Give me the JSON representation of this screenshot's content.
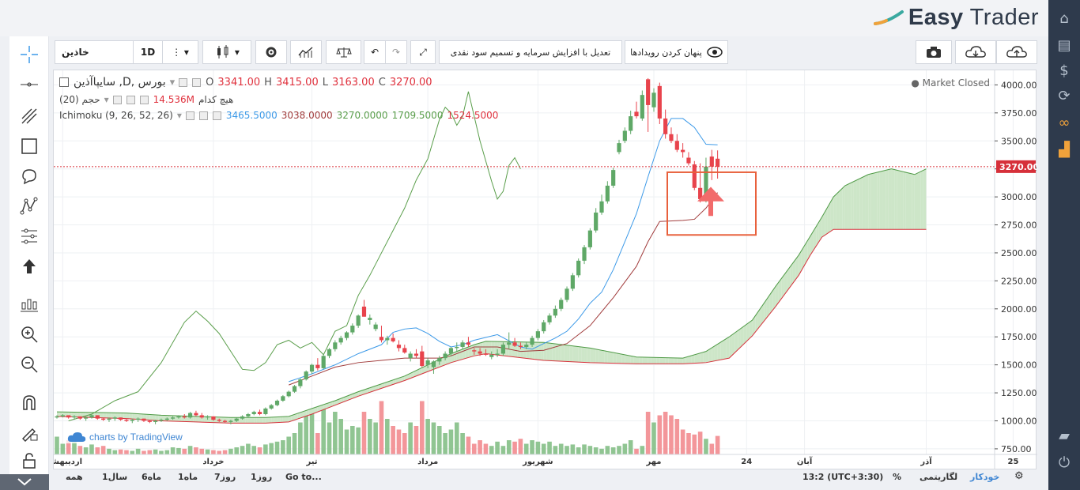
{
  "brand": {
    "name_part1": "Easy",
    "name_part2": "Trader"
  },
  "toolbar": {
    "symbol": "خاذین",
    "interval": "1D",
    "adjust_label": "تعدیل با افزایش سرمایه و تسمیم سود نقدی",
    "hide_events_label": "پنهان کردن رویدادها"
  },
  "legend": {
    "title": "سایپاآذین ,D, بورس",
    "open_label": "O",
    "open": "3341.00",
    "high_label": "H",
    "high": "3415.00",
    "low_label": "L",
    "low": "3163.00",
    "close_label": "C",
    "close": "3270.00",
    "volume_label": "(حجم (20",
    "volume_none": "هیچ کدام",
    "volume_value": "14.536M",
    "ichimoku_label": "Ichimoku (9, 26, 52, 26)",
    "ich_tenkan": "3465.5000",
    "ich_kijun": "3038.0000",
    "ich_chikou": "3270.0000",
    "ich_spanA": "1709.5000",
    "ich_spanB": "1524.5000"
  },
  "market_status": "Market Closed",
  "watermark": "charts by TradingView",
  "bottom": {
    "ranges": [
      "همه",
      "1سال",
      "6ماه",
      "1ماه",
      "7روز",
      "1روز"
    ],
    "goto": "Go to...",
    "time": "13:2 (UTC+3:30)",
    "percent": "%",
    "log": "لگاریتمی",
    "auto": "خودکار"
  },
  "colors": {
    "up": "#5fa867",
    "down": "#e8434c",
    "tenkan": "#3d9ae8",
    "kijun": "#a13c3c",
    "chikou": "#5a9e4b",
    "cloud_bull": "#cde6c8",
    "cloud_bear": "#f5c6c6",
    "price_line": "#d6303a",
    "highlight": "#e8603c"
  },
  "chart_data": {
    "type": "candlestick",
    "ylim": [
      700,
      4130
    ],
    "y_ticks": [
      750,
      1000,
      1250,
      1500,
      1750,
      2000,
      2250,
      2500,
      2750,
      3000,
      3250,
      3500,
      3750,
      4000
    ],
    "y_tick_labels": [
      "750.00",
      "1000.00",
      "1250.00",
      "1500.00",
      "1750.00",
      "2000.00",
      "2250.00",
      "2500.00",
      "2750.00",
      "3000.00",
      "3250.00",
      "3500.00",
      "3750.00",
      "4000.00"
    ],
    "last_price": 3270,
    "last_price_label": "3270.00",
    "x_labels": [
      {
        "i": 1,
        "text": "اردیبهشت"
      },
      {
        "i": 27,
        "text": "خرداد"
      },
      {
        "i": 44,
        "text": "تیر"
      },
      {
        "i": 64,
        "text": "مرداد"
      },
      {
        "i": 83,
        "text": "شهریور"
      },
      {
        "i": 103,
        "text": "مهر"
      },
      {
        "i": 119,
        "text": "24"
      },
      {
        "i": 129,
        "text": "آبان"
      },
      {
        "i": 150,
        "text": "آذر"
      },
      {
        "i": 165,
        "text": "25"
      }
    ],
    "volume_max": 1.0,
    "candles": [
      [
        1030,
        1050,
        1020,
        1040,
        0.25
      ],
      [
        1040,
        1060,
        1030,
        1050,
        0.15
      ],
      [
        1050,
        1040,
        1020,
        1030,
        0.2
      ],
      [
        1030,
        1050,
        1010,
        1040,
        0.18
      ],
      [
        1040,
        1040,
        1010,
        1020,
        0.12
      ],
      [
        1020,
        1040,
        1000,
        1030,
        0.1
      ],
      [
        1030,
        1060,
        1020,
        1050,
        0.14
      ],
      [
        1050,
        1050,
        1010,
        1020,
        0.1
      ],
      [
        1020,
        1030,
        1000,
        1010,
        0.12
      ],
      [
        1010,
        1030,
        990,
        1020,
        0.08
      ],
      [
        1020,
        1040,
        1000,
        1030,
        0.06
      ],
      [
        1030,
        1030,
        1000,
        1010,
        0.07
      ],
      [
        1010,
        1020,
        990,
        1000,
        0.06
      ],
      [
        1000,
        1020,
        980,
        1010,
        0.05
      ],
      [
        1010,
        1030,
        990,
        1020,
        0.08
      ],
      [
        1020,
        1020,
        990,
        1000,
        0.05
      ],
      [
        1000,
        1010,
        980,
        990,
        0.06
      ],
      [
        990,
        1010,
        970,
        1000,
        0.07
      ],
      [
        1000,
        1020,
        990,
        1010,
        0.05
      ],
      [
        1010,
        1030,
        1000,
        1020,
        0.06
      ],
      [
        1020,
        1040,
        1010,
        1030,
        0.1
      ],
      [
        1030,
        1050,
        1020,
        1040,
        0.09
      ],
      [
        1040,
        1060,
        1020,
        1030,
        0.08
      ],
      [
        1030,
        1080,
        1020,
        1070,
        0.12
      ],
      [
        1070,
        1090,
        1040,
        1050,
        0.1
      ],
      [
        1050,
        1070,
        1020,
        1030,
        0.08
      ],
      [
        1030,
        1050,
        1010,
        1040,
        0.07
      ],
      [
        1040,
        1040,
        1000,
        1010,
        0.06
      ],
      [
        1010,
        1020,
        990,
        1000,
        0.05
      ],
      [
        1000,
        1010,
        980,
        990,
        0.06
      ],
      [
        990,
        1010,
        970,
        1000,
        0.08
      ],
      [
        1000,
        1030,
        990,
        1020,
        0.1
      ],
      [
        1020,
        1050,
        1010,
        1040,
        0.12
      ],
      [
        1040,
        1070,
        1030,
        1060,
        0.15
      ],
      [
        1060,
        1090,
        1050,
        1080,
        0.12
      ],
      [
        1080,
        1100,
        1050,
        1060,
        0.1
      ],
      [
        1060,
        1120,
        1050,
        1110,
        0.14
      ],
      [
        1110,
        1150,
        1100,
        1140,
        0.16
      ],
      [
        1140,
        1190,
        1130,
        1180,
        0.18
      ],
      [
        1180,
        1230,
        1170,
        1220,
        0.2
      ],
      [
        1220,
        1270,
        1210,
        1260,
        0.25
      ],
      [
        1260,
        1320,
        1250,
        1310,
        0.3
      ],
      [
        1310,
        1380,
        1290,
        1370,
        0.45
      ],
      [
        1370,
        1450,
        1360,
        1440,
        0.55
      ],
      [
        1440,
        1510,
        1420,
        1500,
        0.6
      ],
      [
        1500,
        1560,
        1450,
        1470,
        0.3
      ],
      [
        1470,
        1600,
        1460,
        1580,
        0.65
      ],
      [
        1580,
        1650,
        1560,
        1640,
        0.45
      ],
      [
        1640,
        1720,
        1620,
        1700,
        0.6
      ],
      [
        1700,
        1760,
        1680,
        1740,
        0.5
      ],
      [
        1740,
        1800,
        1720,
        1790,
        0.35
      ],
      [
        1790,
        1870,
        1770,
        1850,
        0.4
      ],
      [
        1850,
        1950,
        1830,
        1940,
        0.38
      ],
      [
        2020,
        2080,
        1930,
        1930,
        0.6
      ],
      [
        1900,
        1950,
        1860,
        1920,
        0.5
      ],
      [
        1820,
        1880,
        1800,
        1860,
        0.45
      ],
      [
        1750,
        1850,
        1700,
        1720,
        0.75
      ],
      [
        1720,
        1760,
        1680,
        1740,
        0.5
      ],
      [
        1740,
        1780,
        1700,
        1710,
        0.4
      ],
      [
        1680,
        1720,
        1620,
        1650,
        0.35
      ],
      [
        1650,
        1680,
        1600,
        1610,
        0.3
      ],
      [
        1560,
        1620,
        1530,
        1600,
        0.45
      ],
      [
        1600,
        1640,
        1560,
        1580,
        0.4
      ],
      [
        1620,
        1670,
        1480,
        1490,
        0.75
      ],
      [
        1500,
        1560,
        1470,
        1540,
        0.5
      ],
      [
        1480,
        1540,
        1420,
        1530,
        0.45
      ],
      [
        1530,
        1580,
        1500,
        1560,
        0.4
      ],
      [
        1560,
        1620,
        1540,
        1600,
        0.3
      ],
      [
        1600,
        1660,
        1580,
        1650,
        0.35
      ],
      [
        1650,
        1700,
        1620,
        1660,
        0.45
      ],
      [
        1660,
        1720,
        1640,
        1700,
        0.3
      ],
      [
        1700,
        1750,
        1660,
        1680,
        0.25
      ],
      [
        1630,
        1650,
        1590,
        1620,
        0.15
      ],
      [
        1620,
        1650,
        1580,
        1600,
        0.2
      ],
      [
        1600,
        1640,
        1580,
        1590,
        0.15
      ],
      [
        1570,
        1620,
        1550,
        1590,
        0.12
      ],
      [
        1590,
        1640,
        1570,
        1600,
        0.18
      ],
      [
        1600,
        1700,
        1580,
        1680,
        0.12
      ],
      [
        1680,
        1790,
        1640,
        1700,
        0.2
      ],
      [
        1700,
        1740,
        1660,
        1670,
        0.18
      ],
      [
        1670,
        1700,
        1640,
        1660,
        0.22
      ],
      [
        1660,
        1700,
        1640,
        1680,
        0.15
      ],
      [
        1680,
        1760,
        1660,
        1740,
        0.2
      ],
      [
        1740,
        1820,
        1720,
        1800,
        0.18
      ],
      [
        1800,
        1900,
        1780,
        1880,
        0.15
      ],
      [
        1880,
        1960,
        1860,
        1940,
        0.18
      ],
      [
        1940,
        2030,
        1920,
        2000,
        0.12
      ],
      [
        2000,
        2100,
        1980,
        2080,
        0.15
      ],
      [
        2080,
        2200,
        2060,
        2180,
        0.12
      ],
      [
        2180,
        2320,
        2160,
        2300,
        0.14
      ],
      [
        2300,
        2450,
        2280,
        2430,
        0.1
      ],
      [
        2430,
        2570,
        2400,
        2550,
        0.14
      ],
      [
        2550,
        2720,
        2530,
        2700,
        0.12
      ],
      [
        2700,
        2900,
        2680,
        2860,
        0.1
      ],
      [
        2860,
        3020,
        2840,
        2960,
        0.08
      ],
      [
        2960,
        3140,
        2940,
        3100,
        0.12
      ],
      [
        3100,
        3260,
        3080,
        3240,
        0.1
      ],
      [
        3400,
        3510,
        3380,
        3480,
        0.12
      ],
      [
        3500,
        3620,
        3480,
        3590,
        0.15
      ],
      [
        3590,
        3770,
        3560,
        3720,
        0.2
      ],
      [
        3760,
        3850,
        3700,
        3720,
        0.08
      ],
      [
        3700,
        3950,
        3680,
        3910,
        0.12
      ],
      [
        4050,
        4060,
        3580,
        3820,
        0.6
      ],
      [
        3800,
        3970,
        3760,
        3930,
        0.45
      ],
      [
        3990,
        4020,
        3650,
        3700,
        0.55
      ],
      [
        3700,
        3780,
        3520,
        3560,
        0.6
      ],
      [
        3560,
        3620,
        3480,
        3500,
        0.55
      ],
      [
        3500,
        3560,
        3400,
        3420,
        0.5
      ],
      [
        3420,
        3480,
        3350,
        3400,
        0.35
      ],
      [
        3350,
        3400,
        3280,
        3300,
        0.3
      ],
      [
        3290,
        3320,
        3060,
        3080,
        0.28
      ],
      [
        3080,
        3300,
        2950,
        2980,
        0.32
      ],
      [
        2980,
        3350,
        2950,
        3270,
        0.22
      ],
      [
        3360,
        3420,
        3150,
        3270,
        0.15
      ],
      [
        3341,
        3415,
        3163,
        3270,
        0.26
      ]
    ],
    "tenkan": [
      [
        40,
        1350
      ],
      [
        44,
        1420
      ],
      [
        48,
        1500
      ],
      [
        52,
        1600
      ],
      [
        56,
        1680
      ],
      [
        58,
        1790
      ],
      [
        60,
        1820
      ],
      [
        62,
        1830
      ],
      [
        64,
        1780
      ],
      [
        66,
        1710
      ],
      [
        68,
        1660
      ],
      [
        70,
        1680
      ],
      [
        72,
        1720
      ],
      [
        76,
        1770
      ],
      [
        80,
        1660
      ],
      [
        82,
        1640
      ],
      [
        84,
        1690
      ],
      [
        86,
        1740
      ],
      [
        88,
        1800
      ],
      [
        90,
        1910
      ],
      [
        92,
        2050
      ],
      [
        94,
        2150
      ],
      [
        96,
        2350
      ],
      [
        98,
        2600
      ],
      [
        100,
        2850
      ],
      [
        102,
        3180
      ],
      [
        104,
        3500
      ],
      [
        106,
        3700
      ],
      [
        108,
        3700
      ],
      [
        110,
        3620
      ],
      [
        112,
        3470
      ],
      [
        114,
        3465
      ]
    ],
    "kijun": [
      [
        40,
        1320
      ],
      [
        44,
        1400
      ],
      [
        48,
        1480
      ],
      [
        52,
        1520
      ],
      [
        56,
        1540
      ],
      [
        60,
        1560
      ],
      [
        64,
        1560
      ],
      [
        66,
        1560
      ],
      [
        68,
        1580
      ],
      [
        70,
        1620
      ],
      [
        72,
        1660
      ],
      [
        76,
        1660
      ],
      [
        80,
        1620
      ],
      [
        84,
        1630
      ],
      [
        88,
        1690
      ],
      [
        92,
        1850
      ],
      [
        96,
        2100
      ],
      [
        100,
        2380
      ],
      [
        102,
        2600
      ],
      [
        104,
        2780
      ],
      [
        108,
        2790
      ],
      [
        110,
        2800
      ],
      [
        112,
        2900
      ],
      [
        114,
        3038
      ]
    ],
    "chikou": [
      [
        2,
        1000
      ],
      [
        6,
        1060
      ],
      [
        10,
        1180
      ],
      [
        14,
        1260
      ],
      [
        18,
        1520
      ],
      [
        22,
        1880
      ],
      [
        24,
        1980
      ],
      [
        26,
        1890
      ],
      [
        28,
        1780
      ],
      [
        30,
        1620
      ],
      [
        32,
        1460
      ],
      [
        34,
        1450
      ],
      [
        36,
        1520
      ],
      [
        38,
        1680
      ],
      [
        40,
        1720
      ],
      [
        42,
        1650
      ],
      [
        44,
        1700
      ],
      [
        46,
        1590
      ],
      [
        48,
        1800
      ],
      [
        50,
        1850
      ],
      [
        52,
        2120
      ],
      [
        54,
        2300
      ],
      [
        56,
        2500
      ],
      [
        58,
        2700
      ],
      [
        60,
        2900
      ],
      [
        62,
        3150
      ],
      [
        64,
        3340
      ],
      [
        66,
        3690
      ],
      [
        67,
        3800
      ],
      [
        68,
        3750
      ],
      [
        69,
        3640
      ],
      [
        70,
        3720
      ],
      [
        71,
        3940
      ],
      [
        73,
        3500
      ],
      [
        75,
        3140
      ],
      [
        76,
        2980
      ],
      [
        77,
        3050
      ],
      [
        78,
        3280
      ],
      [
        79,
        3350
      ],
      [
        80,
        3250
      ]
    ],
    "span_a": [
      [
        0,
        1080
      ],
      [
        6,
        1075
      ],
      [
        12,
        1070
      ],
      [
        18,
        1050
      ],
      [
        24,
        1040
      ],
      [
        30,
        1030
      ],
      [
        36,
        1030
      ],
      [
        40,
        1040
      ],
      [
        44,
        1110
      ],
      [
        48,
        1180
      ],
      [
        52,
        1260
      ],
      [
        56,
        1330
      ],
      [
        60,
        1400
      ],
      [
        64,
        1500
      ],
      [
        68,
        1600
      ],
      [
        72,
        1680
      ],
      [
        74,
        1710
      ],
      [
        84,
        1700
      ],
      [
        92,
        1650
      ],
      [
        100,
        1570
      ],
      [
        108,
        1560
      ],
      [
        112,
        1620
      ],
      [
        116,
        1750
      ],
      [
        120,
        1900
      ],
      [
        124,
        2200
      ],
      [
        128,
        2480
      ],
      [
        130,
        2650
      ],
      [
        132,
        2820
      ],
      [
        134,
        3000
      ],
      [
        136,
        3100
      ],
      [
        140,
        3200
      ],
      [
        144,
        3250
      ],
      [
        148,
        3200
      ],
      [
        150,
        3250
      ]
    ],
    "span_b": [
      [
        0,
        1040
      ],
      [
        6,
        1030
      ],
      [
        12,
        1020
      ],
      [
        18,
        1000
      ],
      [
        24,
        990
      ],
      [
        30,
        980
      ],
      [
        36,
        980
      ],
      [
        40,
        990
      ],
      [
        44,
        1060
      ],
      [
        48,
        1140
      ],
      [
        52,
        1220
      ],
      [
        56,
        1290
      ],
      [
        60,
        1360
      ],
      [
        64,
        1440
      ],
      [
        68,
        1520
      ],
      [
        72,
        1580
      ],
      [
        74,
        1600
      ],
      [
        84,
        1540
      ],
      [
        92,
        1520
      ],
      [
        100,
        1510
      ],
      [
        108,
        1510
      ],
      [
        112,
        1520
      ],
      [
        116,
        1560
      ],
      [
        120,
        1760
      ],
      [
        124,
        2020
      ],
      [
        128,
        2300
      ],
      [
        130,
        2480
      ],
      [
        132,
        2640
      ],
      [
        134,
        2710
      ],
      [
        150,
        2710
      ]
    ]
  }
}
